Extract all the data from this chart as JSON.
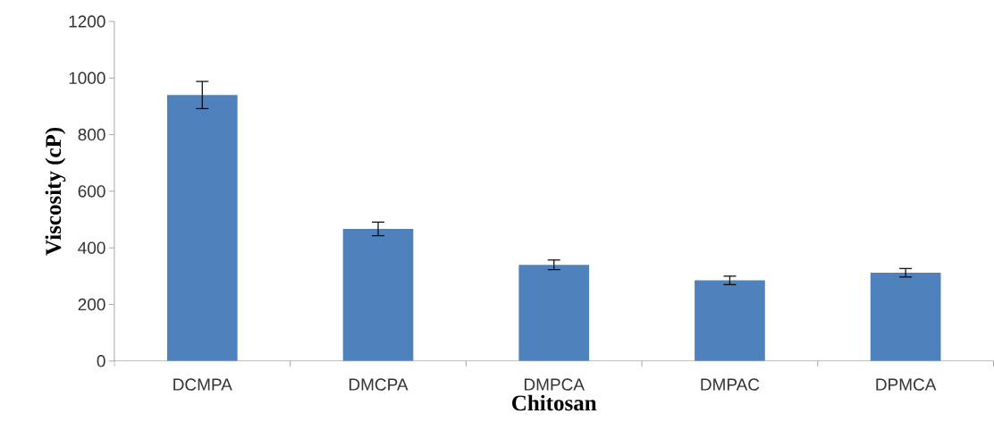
{
  "chart_data": {
    "type": "bar",
    "xlabel": "Chitosan",
    "ylabel": "Viscosity (cP)",
    "categories": [
      "DCMPA",
      "DMCPA",
      "DMPCA",
      "DMPAC",
      "DPMCA"
    ],
    "values": [
      940,
      467,
      340,
      285,
      312
    ],
    "errors": [
      48,
      24,
      17,
      15,
      15
    ],
    "color": "#4f81bd",
    "ylim": [
      0,
      1200
    ],
    "yticks": [
      0,
      200,
      400,
      600,
      800,
      1000,
      1200
    ]
  }
}
